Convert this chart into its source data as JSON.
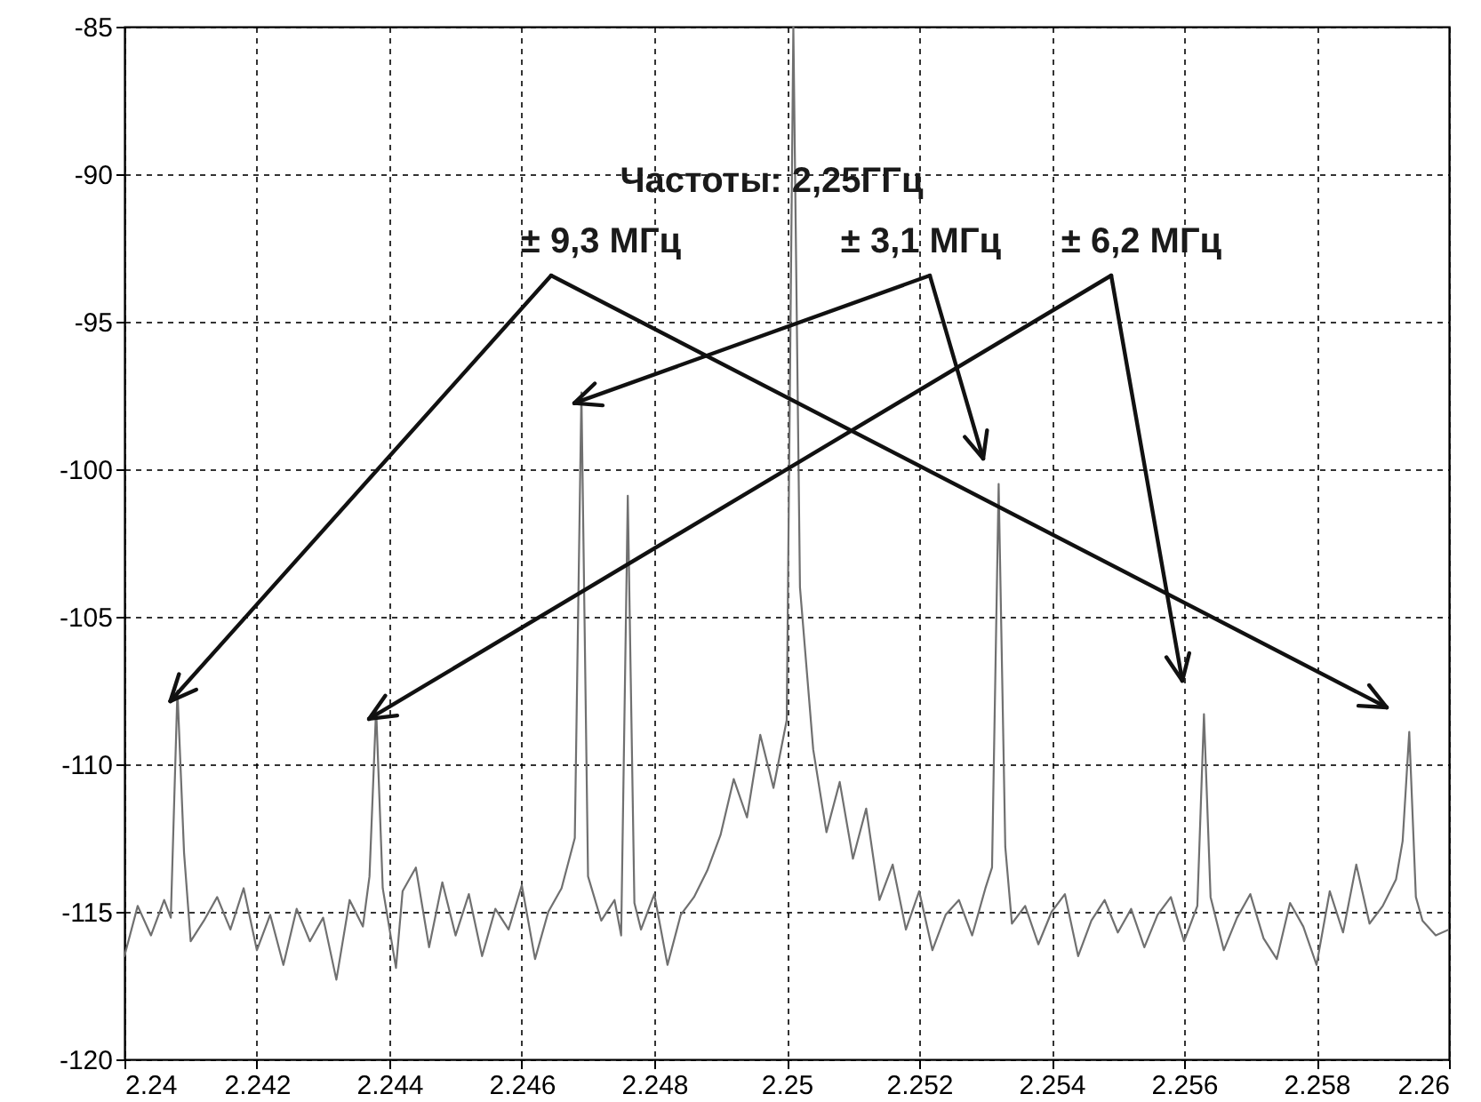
{
  "chart_data": {
    "type": "line",
    "annotations": [
      "Частоты:   2,25ГГц",
      {
        "text": "± 9,3 МГц",
        "x": 2.2408,
        "y": -107.5
      },
      {
        "text": "± 3,1 МГц",
        "x": 2.2469,
        "y": -97.4
      },
      {
        "text": "± 6,2 МГц",
        "x": 2.2438,
        "y": -108.1
      }
    ],
    "x": [
      2.24,
      2.2402,
      2.2404,
      2.2406,
      2.2407,
      2.2408,
      2.2409,
      2.241,
      2.2412,
      2.2414,
      2.2416,
      2.2418,
      2.242,
      2.2422,
      2.2424,
      2.2426,
      2.2428,
      2.243,
      2.2432,
      2.2434,
      2.2436,
      2.2437,
      2.2438,
      2.2439,
      2.2441,
      2.2442,
      2.2444,
      2.2446,
      2.2448,
      2.245,
      2.2452,
      2.2454,
      2.2456,
      2.2458,
      2.246,
      2.2462,
      2.2464,
      2.2466,
      2.2468,
      2.2469,
      2.247,
      2.2472,
      2.2474,
      2.2475,
      2.2476,
      2.2477,
      2.2478,
      2.248,
      2.2482,
      2.2484,
      2.2486,
      2.2488,
      2.249,
      2.2492,
      2.2494,
      2.2496,
      2.2498,
      2.25,
      2.2501,
      2.2502,
      2.2504,
      2.2506,
      2.2508,
      2.251,
      2.2512,
      2.2514,
      2.2516,
      2.2518,
      2.252,
      2.2522,
      2.2524,
      2.2526,
      2.2528,
      2.253,
      2.2531,
      2.2532,
      2.2533,
      2.2534,
      2.2536,
      2.2538,
      2.254,
      2.2542,
      2.2544,
      2.2546,
      2.2548,
      2.255,
      2.2552,
      2.2554,
      2.2556,
      2.2558,
      2.256,
      2.2562,
      2.2563,
      2.2564,
      2.2566,
      2.2568,
      2.257,
      2.2572,
      2.2574,
      2.2576,
      2.2578,
      2.258,
      2.2582,
      2.2584,
      2.2586,
      2.2588,
      2.259,
      2.2592,
      2.2593,
      2.2594,
      2.2595,
      2.2596,
      2.2598,
      2.26
    ],
    "series": [
      {
        "color": "#707070",
        "values": [
          -116.5,
          -114.8,
          -115.8,
          -114.6,
          -115.2,
          -107.5,
          -113,
          -116,
          -115.3,
          -114.5,
          -115.6,
          -114.2,
          -116.3,
          -115.1,
          -116.8,
          -114.9,
          -116,
          -115.2,
          -117.3,
          -114.6,
          -115.5,
          -113.8,
          -108.1,
          -114.2,
          -116.9,
          -114.3,
          -113.5,
          -116.2,
          -114,
          -115.8,
          -114.4,
          -116.5,
          -114.9,
          -115.6,
          -114.1,
          -116.6,
          -115,
          -114.2,
          -112.5,
          -97.4,
          -113.8,
          -115.3,
          -114.6,
          -115.8,
          -100.9,
          -114.7,
          -115.6,
          -114.4,
          -116.8,
          -115.1,
          -114.5,
          -113.6,
          -112.4,
          -110.5,
          -111.8,
          -109,
          -110.8,
          -108.5,
          -85,
          -104,
          -109.5,
          -112.3,
          -110.6,
          -113.2,
          -111.5,
          -114.6,
          -113.4,
          -115.6,
          -114.3,
          -116.3,
          -115.1,
          -114.6,
          -115.8,
          -114.2,
          -113.5,
          -100.5,
          -112.8,
          -115.4,
          -114.8,
          -116.1,
          -115,
          -114.4,
          -116.5,
          -115.3,
          -114.6,
          -115.7,
          -114.9,
          -116.2,
          -115.1,
          -114.5,
          -116,
          -114.8,
          -108.3,
          -114.5,
          -116.3,
          -115.2,
          -114.4,
          -115.9,
          -116.6,
          -114.7,
          -115.5,
          -116.8,
          -114.3,
          -115.7,
          -113.4,
          -115.4,
          -114.8,
          -113.9,
          -112.6,
          -108.9,
          -114.5,
          -115.3,
          -115.8,
          -115.6
        ]
      }
    ],
    "xlim": [
      2.24,
      2.26
    ],
    "xticks": [
      2.24,
      2.242,
      2.244,
      2.246,
      2.248,
      2.25,
      2.252,
      2.254,
      2.256,
      2.258,
      2.26
    ],
    "ylim": [
      -120,
      -85
    ],
    "yticks": [
      -120,
      -115,
      -110,
      -105,
      -100,
      -95,
      -90,
      -85
    ],
    "grid": true,
    "line_style": "solid",
    "marker": "none"
  }
}
